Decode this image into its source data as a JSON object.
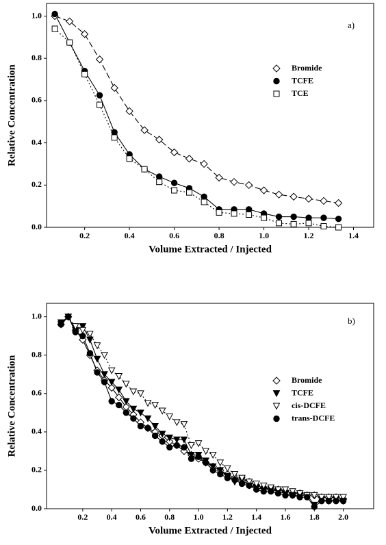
{
  "chart_data": [
    {
      "type": "line",
      "annotation": "a)",
      "x_label": "Volume Extracted / Injected",
      "y_label": "Relative Concentration",
      "x": [
        0.067,
        0.133,
        0.2,
        0.267,
        0.333,
        0.4,
        0.467,
        0.533,
        0.6,
        0.667,
        0.733,
        0.8,
        0.867,
        0.933,
        1.0,
        1.067,
        1.133,
        1.2,
        1.267,
        1.333
      ],
      "series": [
        {
          "name": "Bromide",
          "color": "#000000",
          "marker": "diamond",
          "filled": false,
          "dash": "9 4",
          "values": [
            1.0,
            0.975,
            0.915,
            0.795,
            0.66,
            0.55,
            0.46,
            0.415,
            0.355,
            0.325,
            0.3,
            0.235,
            0.215,
            0.2,
            0.175,
            0.155,
            0.145,
            0.135,
            0.125,
            0.115
          ]
        },
        {
          "name": "TCFE",
          "color": "#000000",
          "marker": "circle",
          "filled": true,
          "dash": "none",
          "values": [
            1.01,
            0.875,
            0.74,
            0.625,
            0.45,
            0.345,
            0.275,
            0.24,
            0.21,
            0.185,
            0.145,
            0.085,
            0.085,
            0.085,
            0.065,
            0.05,
            0.05,
            0.045,
            0.045,
            0.04
          ]
        },
        {
          "name": "TCE",
          "color": "#000000",
          "marker": "square",
          "filled": false,
          "dash": "2 3",
          "values": [
            0.94,
            0.875,
            0.725,
            0.58,
            0.425,
            0.325,
            0.275,
            0.215,
            0.175,
            0.165,
            0.12,
            0.07,
            0.065,
            0.06,
            0.045,
            0.02,
            0.015,
            0.02,
            0.005,
            0.0
          ]
        }
      ],
      "xlim": [
        0.03,
        1.49
      ],
      "ylim": [
        0,
        1.06
      ],
      "xticks": [
        0.2,
        0.4,
        0.6,
        0.8,
        {
          "value": 1.0,
          "label": "1.0"
        },
        1.2,
        1.4
      ],
      "yticks": [
        {
          "value": 0,
          "label": "0.0"
        },
        0.2,
        0.4,
        0.6,
        0.8,
        {
          "value": 1.0,
          "label": "1.0"
        }
      ],
      "legend": "right",
      "grid": false
    },
    {
      "type": "line",
      "annotation": "b)",
      "x_label": "Volume Extracted / Injected",
      "y_label": "Relative Concentration",
      "x": [
        0.05,
        0.1,
        0.15,
        0.2,
        0.25,
        0.3,
        0.35,
        0.4,
        0.45,
        0.5,
        0.55,
        0.6,
        0.65,
        0.7,
        0.75,
        0.8,
        0.85,
        0.9,
        0.95,
        1.0,
        1.05,
        1.1,
        1.15,
        1.2,
        1.25,
        1.3,
        1.35,
        1.4,
        1.45,
        1.5,
        1.55,
        1.6,
        1.65,
        1.7,
        1.75,
        1.8,
        1.85,
        1.9,
        1.95,
        2.0
      ],
      "series": [
        {
          "name": "Bromide",
          "color": "#000000",
          "marker": "diamond",
          "filled": false,
          "dash": "none",
          "values": [
            0.96,
            1.0,
            0.93,
            0.88,
            0.8,
            0.72,
            0.67,
            0.63,
            0.58,
            0.53,
            0.49,
            0.45,
            0.42,
            0.4,
            0.38,
            0.35,
            0.33,
            0.3,
            0.28,
            0.26,
            0.24,
            0.22,
            0.2,
            0.18,
            0.16,
            0.15,
            0.14,
            0.12,
            0.11,
            0.1,
            0.1,
            0.09,
            0.08,
            0.08,
            0.07,
            0.07,
            0.06,
            0.06,
            0.06,
            0.05
          ]
        },
        {
          "name": "TCFE",
          "color": "#000000",
          "marker": "triangle-down",
          "filled": true,
          "dash": "none",
          "values": [
            0.97,
            1.0,
            0.93,
            0.95,
            0.88,
            0.78,
            0.7,
            0.66,
            0.62,
            0.56,
            0.52,
            0.5,
            0.47,
            0.43,
            0.39,
            0.37,
            0.36,
            0.36,
            0.28,
            0.28,
            0.25,
            0.22,
            0.2,
            0.17,
            0.14,
            0.15,
            0.12,
            0.11,
            0.1,
            0.1,
            0.09,
            0.08,
            0.07,
            0.07,
            0.07,
            0.02,
            0.05,
            0.04,
            0.05,
            0.04
          ]
        },
        {
          "name": "cis-DCFE",
          "color": "#000000",
          "marker": "triangle-down",
          "filled": false,
          "dash": "2 3",
          "values": [
            0.96,
            1.0,
            0.95,
            0.93,
            0.91,
            0.85,
            0.8,
            0.72,
            0.69,
            0.65,
            0.61,
            0.6,
            0.55,
            0.54,
            0.51,
            0.48,
            0.45,
            0.44,
            0.33,
            0.34,
            0.3,
            0.28,
            0.24,
            0.21,
            0.18,
            0.16,
            0.14,
            0.13,
            0.12,
            0.11,
            0.1,
            0.1,
            0.09,
            0.08,
            0.07,
            0.07,
            0.06,
            0.06,
            0.06,
            0.06
          ]
        },
        {
          "name": "trans-DCFE",
          "color": "#000000",
          "marker": "circle",
          "filled": true,
          "dash": "none",
          "values": [
            0.96,
            1.0,
            0.92,
            0.9,
            0.81,
            0.71,
            0.66,
            0.56,
            0.54,
            0.5,
            0.47,
            0.43,
            0.42,
            0.38,
            0.35,
            0.32,
            0.33,
            0.32,
            0.26,
            0.27,
            0.24,
            0.2,
            0.18,
            0.16,
            0.15,
            0.13,
            0.12,
            0.1,
            0.09,
            0.09,
            0.08,
            0.07,
            0.07,
            0.06,
            0.06,
            0.01,
            0.04,
            0.04,
            0.04,
            0.04
          ]
        }
      ],
      "xlim": [
        -0.05,
        2.21
      ],
      "ylim": [
        0,
        1.07
      ],
      "xticks": [
        0.2,
        0.4,
        0.6,
        0.8,
        {
          "value": 1.0,
          "label": "1.0"
        },
        1.2,
        1.4,
        1.6,
        1.8,
        {
          "value": 2.0,
          "label": "2.0"
        }
      ],
      "yticks": [
        {
          "value": 0,
          "label": "0.0"
        },
        0.2,
        0.4,
        0.6,
        0.8,
        {
          "value": 1.0,
          "label": "1.0"
        }
      ],
      "legend": "right",
      "grid": false
    }
  ]
}
